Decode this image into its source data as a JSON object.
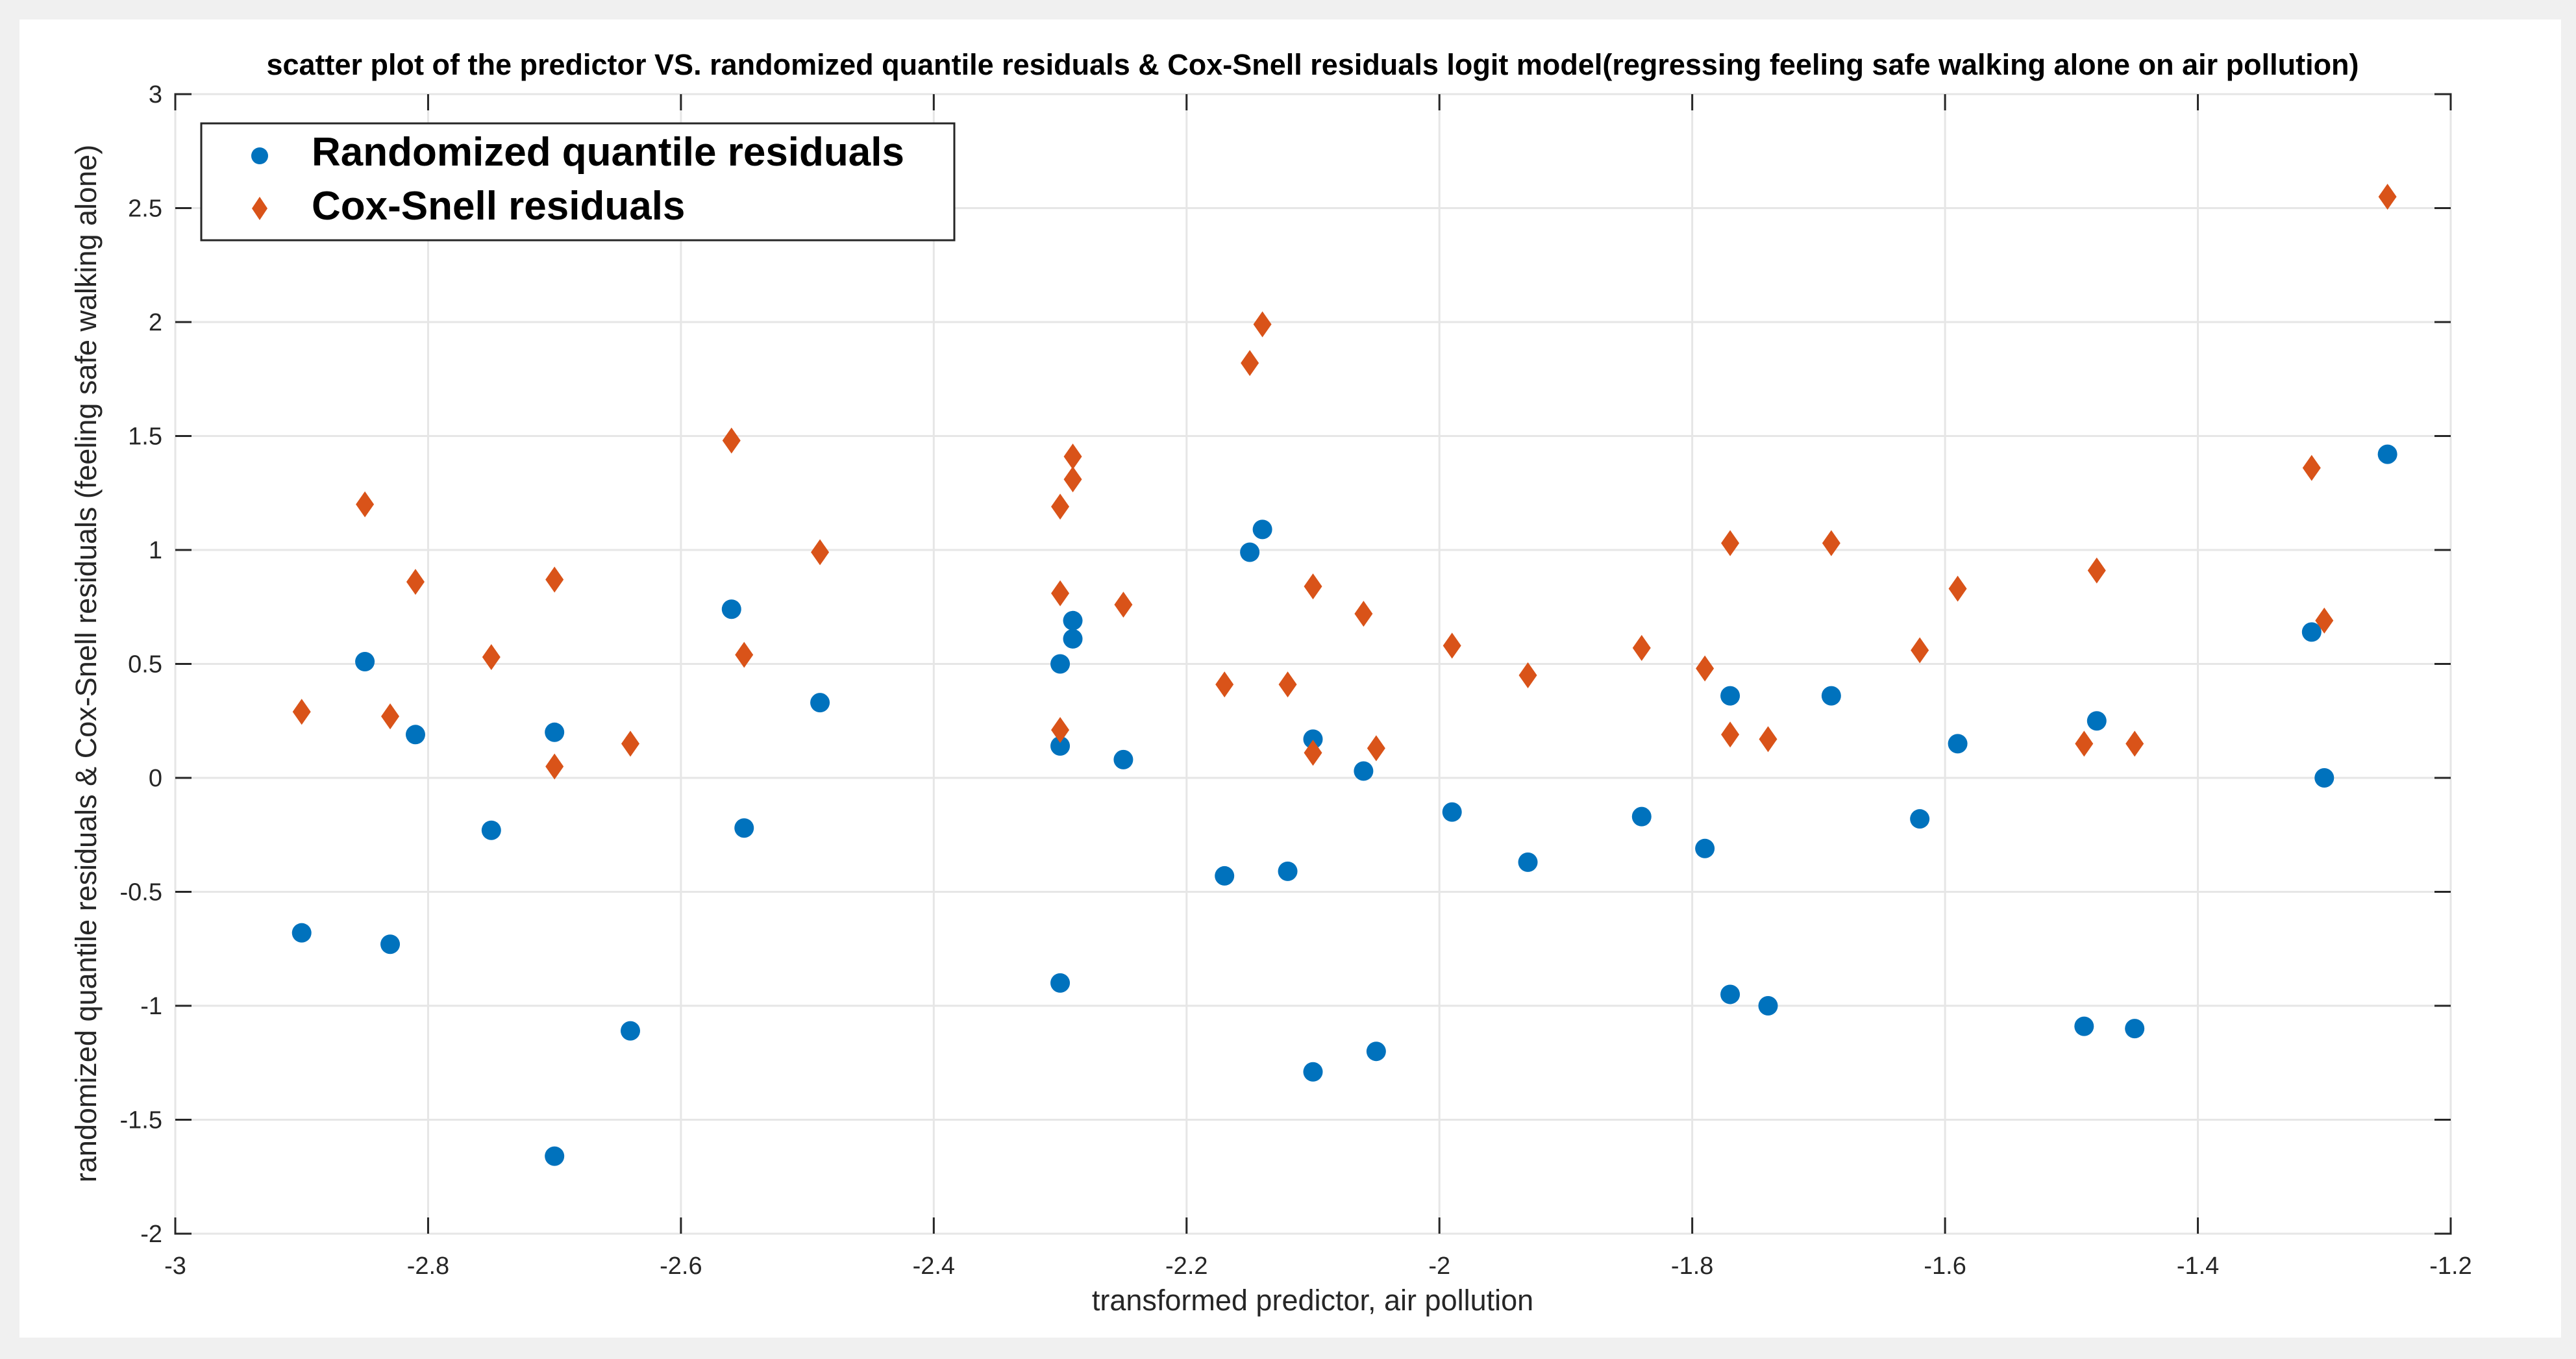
{
  "chart_data": {
    "type": "scatter",
    "title": "scatter plot of the predictor VS. randomized quantile residuals & Cox-Snell residuals logit model(regressing feeling safe walking alone on air pollution)",
    "xlabel": "transformed predictor, air pollution",
    "ylabel": "randomized quantile residuals & Cox-Snell residuals (feeling safe walking alone)",
    "xlim": [
      -3,
      -1.2
    ],
    "ylim": [
      -2,
      3
    ],
    "x_ticks": [
      -3,
      -2.8,
      -2.6,
      -2.4,
      -2.2,
      -2,
      -1.8,
      -1.6,
      -1.4,
      -1.2
    ],
    "x_tick_labels": [
      "-3",
      "-2.8",
      "-2.6",
      "-2.4",
      "-2.2",
      "-2",
      "-1.8",
      "-1.6",
      "-1.4",
      "-1.2"
    ],
    "y_ticks": [
      -2,
      -1.5,
      -1,
      -0.5,
      0,
      0.5,
      1,
      1.5,
      2,
      2.5,
      3
    ],
    "y_tick_labels": [
      "-2",
      "-1.5",
      "-1",
      "-0.5",
      "0",
      "0.5",
      "1",
      "1.5",
      "2",
      "2.5",
      "3"
    ],
    "grid": true,
    "legend_position": "top-left",
    "series": [
      {
        "name": "Randomized quantile residuals",
        "marker": "circle",
        "color": "#0072BD",
        "points": [
          [
            -2.9,
            -0.68
          ],
          [
            -2.85,
            0.51
          ],
          [
            -2.83,
            -0.73
          ],
          [
            -2.81,
            0.19
          ],
          [
            -2.75,
            -0.23
          ],
          [
            -2.7,
            0.2
          ],
          [
            -2.7,
            -1.66
          ],
          [
            -2.64,
            -1.11
          ],
          [
            -2.56,
            0.74
          ],
          [
            -2.55,
            -0.22
          ],
          [
            -2.49,
            0.33
          ],
          [
            -2.3,
            0.5
          ],
          [
            -2.3,
            0.14
          ],
          [
            -2.3,
            -0.9
          ],
          [
            -2.29,
            0.69
          ],
          [
            -2.29,
            0.61
          ],
          [
            -2.25,
            0.08
          ],
          [
            -2.17,
            -0.43
          ],
          [
            -2.15,
            0.99
          ],
          [
            -2.14,
            1.09
          ],
          [
            -2.12,
            -0.41
          ],
          [
            -2.1,
            0.17
          ],
          [
            -2.1,
            -1.29
          ],
          [
            -2.06,
            0.03
          ],
          [
            -2.05,
            -1.2
          ],
          [
            -1.99,
            -0.15
          ],
          [
            -1.93,
            -0.37
          ],
          [
            -1.84,
            -0.17
          ],
          [
            -1.79,
            -0.31
          ],
          [
            -1.77,
            0.36
          ],
          [
            -1.77,
            -0.95
          ],
          [
            -1.74,
            -1.0
          ],
          [
            -1.69,
            0.36
          ],
          [
            -1.62,
            -0.18
          ],
          [
            -1.59,
            0.15
          ],
          [
            -1.48,
            0.25
          ],
          [
            -1.49,
            -1.09
          ],
          [
            -1.45,
            -1.1
          ],
          [
            -1.31,
            0.64
          ],
          [
            -1.3,
            0.0
          ],
          [
            -1.25,
            1.42
          ]
        ]
      },
      {
        "name": "Cox-Snell residuals",
        "marker": "diamond",
        "color": "#D95319",
        "points": [
          [
            -2.9,
            0.29
          ],
          [
            -2.85,
            1.2
          ],
          [
            -2.83,
            0.27
          ],
          [
            -2.81,
            0.86
          ],
          [
            -2.75,
            0.53
          ],
          [
            -2.7,
            0.87
          ],
          [
            -2.7,
            0.05
          ],
          [
            -2.64,
            0.15
          ],
          [
            -2.56,
            1.48
          ],
          [
            -2.55,
            0.54
          ],
          [
            -2.49,
            0.99
          ],
          [
            -2.3,
            1.19
          ],
          [
            -2.3,
            0.81
          ],
          [
            -2.3,
            0.21
          ],
          [
            -2.29,
            1.41
          ],
          [
            -2.29,
            1.31
          ],
          [
            -2.25,
            0.76
          ],
          [
            -2.17,
            0.41
          ],
          [
            -2.15,
            1.82
          ],
          [
            -2.14,
            1.99
          ],
          [
            -2.12,
            0.41
          ],
          [
            -2.1,
            0.84
          ],
          [
            -2.1,
            0.11
          ],
          [
            -2.06,
            0.72
          ],
          [
            -2.05,
            0.13
          ],
          [
            -1.99,
            0.58
          ],
          [
            -1.93,
            0.45
          ],
          [
            -1.84,
            0.57
          ],
          [
            -1.79,
            0.48
          ],
          [
            -1.77,
            1.03
          ],
          [
            -1.77,
            0.19
          ],
          [
            -1.74,
            0.17
          ],
          [
            -1.69,
            1.03
          ],
          [
            -1.62,
            0.56
          ],
          [
            -1.59,
            0.83
          ],
          [
            -1.48,
            0.91
          ],
          [
            -1.49,
            0.15
          ],
          [
            -1.45,
            0.15
          ],
          [
            -1.31,
            1.36
          ],
          [
            -1.3,
            0.69
          ],
          [
            -1.25,
            2.55
          ]
        ]
      }
    ]
  }
}
